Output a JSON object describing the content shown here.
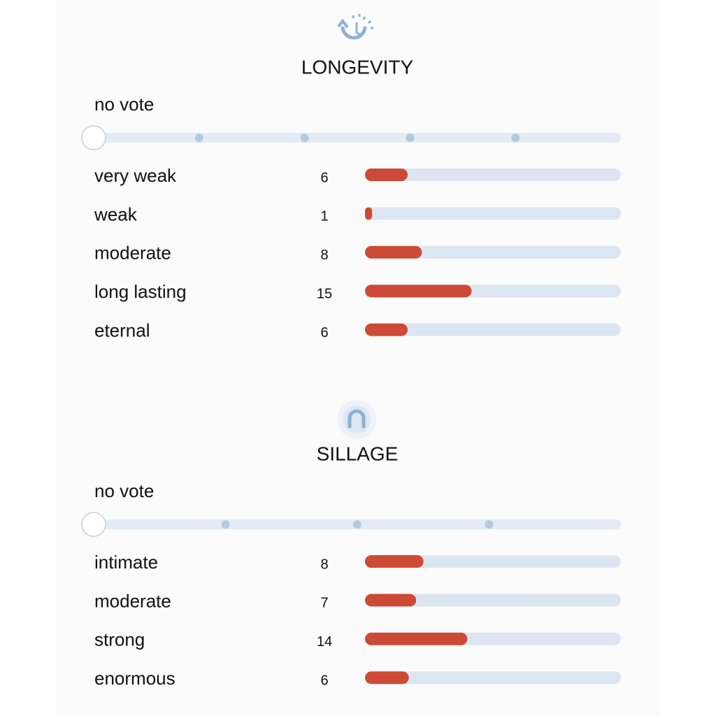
{
  "sections": [
    {
      "title": "LONGEVITY",
      "slider_label": "no vote",
      "rows": [
        {
          "label": "very weak",
          "count": 6
        },
        {
          "label": "weak",
          "count": 1
        },
        {
          "label": "moderate",
          "count": 8
        },
        {
          "label": "long lasting",
          "count": 15
        },
        {
          "label": "eternal",
          "count": 6
        }
      ]
    },
    {
      "title": "SILLAGE",
      "slider_label": "no vote",
      "rows": [
        {
          "label": "intimate",
          "count": 8
        },
        {
          "label": "moderate",
          "count": 7
        },
        {
          "label": "strong",
          "count": 14
        },
        {
          "label": "enormous",
          "count": 6
        }
      ]
    }
  ]
}
